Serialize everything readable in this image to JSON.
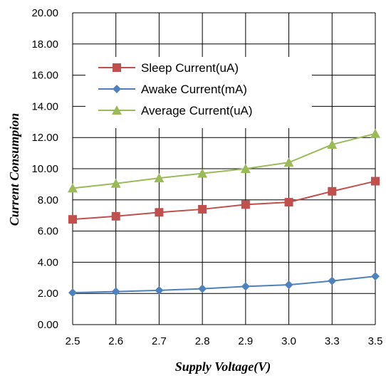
{
  "chart_data": {
    "type": "line",
    "categories": [
      "2.5",
      "2.6",
      "2.7",
      "2.8",
      "2.9",
      "3.0",
      "3.3",
      "3.5"
    ],
    "series": [
      {
        "name": "Sleep Current(uA)",
        "values": [
          6.75,
          6.95,
          7.2,
          7.4,
          7.7,
          7.85,
          8.55,
          9.2
        ],
        "color": "#C0504D",
        "marker": "square"
      },
      {
        "name": "Awake Current(mA)",
        "values": [
          2.05,
          2.12,
          2.2,
          2.3,
          2.45,
          2.55,
          2.8,
          3.1
        ],
        "color": "#4F81BD",
        "marker": "diamond"
      },
      {
        "name": "Average Current(uA)",
        "values": [
          8.75,
          9.05,
          9.4,
          9.7,
          10.0,
          10.4,
          11.55,
          12.25
        ],
        "color": "#9BBB59",
        "marker": "triangle"
      }
    ],
    "ylim": [
      0,
      20
    ],
    "yticks": [
      "0.00",
      "2.00",
      "4.00",
      "6.00",
      "8.00",
      "10.00",
      "12.00",
      "14.00",
      "16.00",
      "18.00",
      "20.00"
    ],
    "xlabel": "Supply Voltage(V)",
    "ylabel": "Current  Consumpion",
    "grid": true,
    "legend_position": "top-left"
  }
}
